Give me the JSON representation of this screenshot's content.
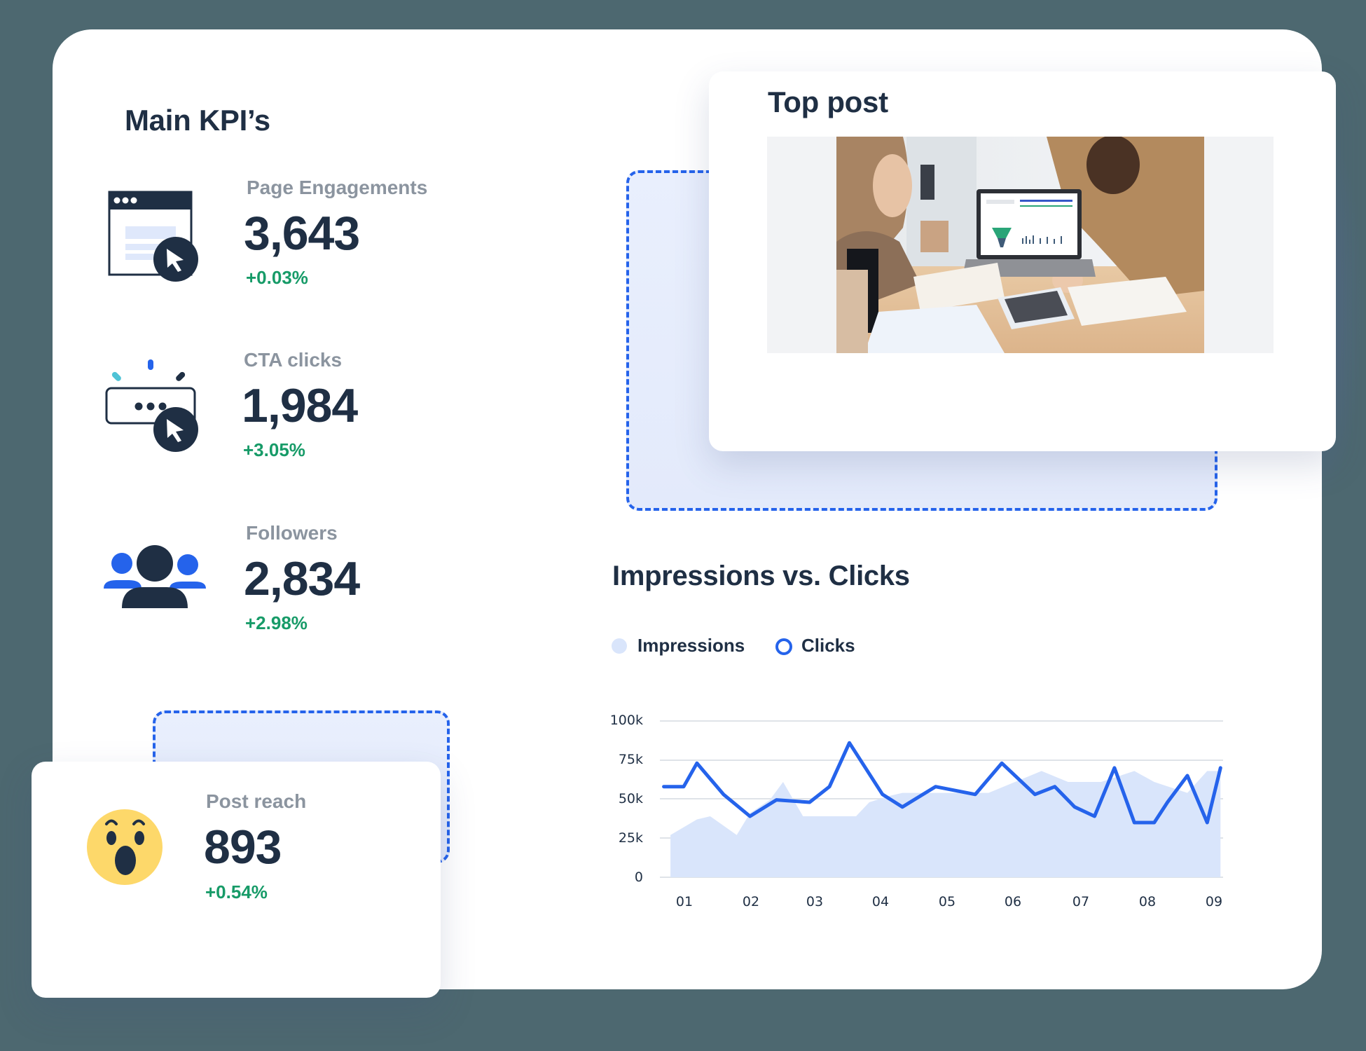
{
  "main_kpis": {
    "title": "Main KPI’s",
    "items": [
      {
        "id": "page-engagements",
        "label": "Page Engagements",
        "value": "3,643",
        "delta": "+0.03%",
        "icon": "browser-click-icon"
      },
      {
        "id": "cta-clicks",
        "label": "CTA clicks",
        "value": "1,984",
        "delta": "+3.05%",
        "icon": "button-click-icon"
      },
      {
        "id": "followers",
        "label": "Followers",
        "value": "2,834",
        "delta": "+2.98%",
        "icon": "followers-icon"
      }
    ]
  },
  "post_reach": {
    "label": "Post reach",
    "value": "893",
    "delta": "+0.54%",
    "icon": "wow-emoji-icon"
  },
  "top_post": {
    "title": "Top post",
    "image": "team-reviewing-dashboard-photo"
  },
  "chart": {
    "title": "Impressions vs. Clicks",
    "legend": [
      {
        "label": "Impressions",
        "marker": "filled-dot",
        "color": "#d9e5fb"
      },
      {
        "label": "Clicks",
        "marker": "ring",
        "color": "#2563eb"
      }
    ],
    "y_ticks": [
      "100k",
      "75k",
      "50k",
      "25k",
      "0"
    ],
    "x_ticks": [
      "01",
      "02",
      "03",
      "04",
      "05",
      "06",
      "07",
      "08",
      "09"
    ]
  },
  "colors": {
    "background": "#4d6870",
    "navy": "#1f2f44",
    "label_gray": "#8b949f",
    "positive_green": "#179b68",
    "accent_blue": "#2563eb",
    "impressions_fill": "#d9e5fb",
    "emoji_yellow": "#fdd86a"
  },
  "chart_data": {
    "type": "line",
    "title": "Impressions vs. Clicks",
    "xlabel": "",
    "ylabel": "",
    "ylim": [
      0,
      100000
    ],
    "grid": true,
    "legend_position": "top-left",
    "categories": [
      "01",
      "02",
      "03",
      "04",
      "05",
      "06",
      "07",
      "08",
      "09"
    ],
    "series": [
      {
        "name": "Impressions",
        "type": "area",
        "x": [
          0.8,
          1.2,
          1.4,
          1.8,
          2.0,
          2.3,
          2.5,
          2.8,
          3.6,
          3.8,
          4.1,
          4.3,
          5.6,
          6.0,
          6.4,
          6.8,
          7.3,
          7.8,
          8.1,
          8.6,
          8.9,
          9.1
        ],
        "values": [
          27000,
          37000,
          39000,
          27000,
          41000,
          49500,
          61000,
          39000,
          39000,
          48000,
          52000,
          54000,
          54000,
          61000,
          68000,
          61000,
          61000,
          68000,
          61000,
          54000,
          68000,
          68000
        ]
      },
      {
        "name": "Clicks",
        "type": "line",
        "x": [
          0.7,
          1.0,
          1.2,
          1.6,
          2.0,
          2.4,
          2.9,
          3.2,
          3.5,
          4.0,
          4.3,
          4.8,
          5.4,
          5.8,
          6.3,
          6.6,
          6.9,
          7.2,
          7.5,
          7.8,
          8.1,
          8.3,
          8.6,
          8.9,
          9.1
        ],
        "values": [
          58000,
          58000,
          73000,
          53000,
          39000,
          49500,
          48000,
          58000,
          86000,
          53000,
          45000,
          58000,
          53000,
          73000,
          53000,
          58000,
          45000,
          39000,
          70000,
          35000,
          35000,
          48000,
          65000,
          35000,
          70000
        ]
      }
    ]
  }
}
